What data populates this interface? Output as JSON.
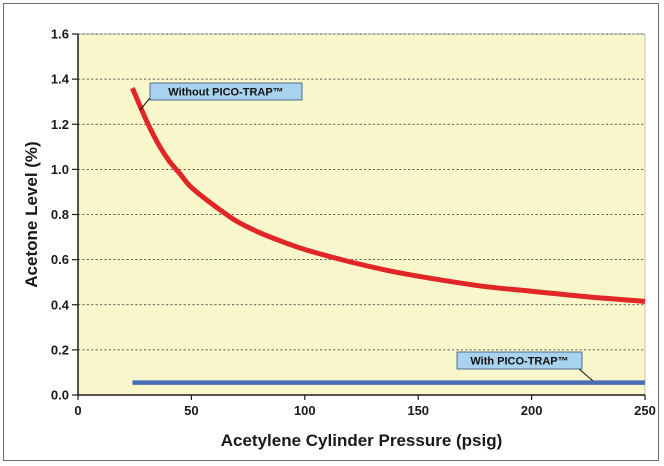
{
  "chart_data": {
    "type": "line",
    "title": "",
    "xlabel": "Acetylene Cylinder Pressure (psig)",
    "ylabel": "Acetone Level (%)",
    "xlim": [
      0,
      250
    ],
    "ylim": [
      0,
      1.6
    ],
    "x_ticks": [
      "0",
      "50",
      "100",
      "150",
      "200",
      "250"
    ],
    "y_ticks": [
      "0.0",
      "0.2",
      "0.4",
      "0.6",
      "0.8",
      "1.0",
      "1.2",
      "1.4",
      "1.6"
    ],
    "grid": "horizontal dashed",
    "plot_background": "#faf6cc",
    "series": [
      {
        "name": "Without PICO-TRAP™",
        "color": "#e02626",
        "x": [
          24,
          30,
          35,
          40,
          45,
          50,
          60,
          70,
          80,
          90,
          100,
          120,
          140,
          160,
          180,
          200,
          225,
          250
        ],
        "y": [
          1.36,
          1.22,
          1.12,
          1.04,
          0.98,
          0.92,
          0.84,
          0.77,
          0.72,
          0.68,
          0.645,
          0.59,
          0.545,
          0.51,
          0.48,
          0.46,
          0.435,
          0.415
        ]
      },
      {
        "name": "With PICO-TRAP™",
        "color": "#4a6db8",
        "x": [
          24,
          250
        ],
        "y": [
          0.055,
          0.055
        ]
      }
    ],
    "annotations": [
      {
        "text": "Without PICO-TRAP™",
        "series": 0,
        "callout_fill": "#a9d2ee"
      },
      {
        "text": "With PICO-TRAP™",
        "series": 1,
        "callout_fill": "#a9d2ee"
      }
    ]
  }
}
